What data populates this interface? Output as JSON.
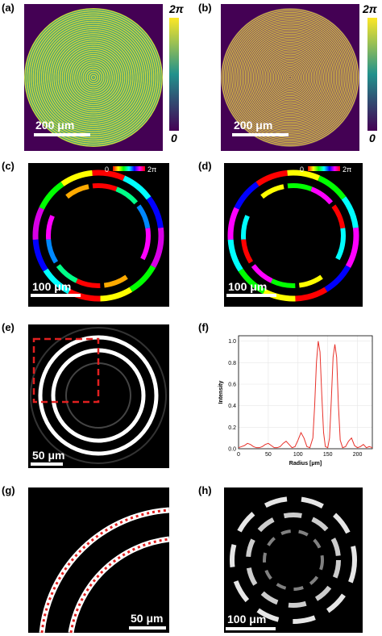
{
  "panels": [
    {
      "label": "(a)",
      "scale_bar": "200 μm",
      "colorbar": {
        "top": "2π",
        "bottom": "0"
      }
    },
    {
      "label": "(b)",
      "scale_bar": "200 μm",
      "colorbar": {
        "top": "2π",
        "bottom": "0"
      }
    },
    {
      "label": "(c)",
      "scale_bar": "100 μm",
      "colorbar": {
        "left": "0",
        "right": "2π"
      }
    },
    {
      "label": "(d)",
      "scale_bar": "100 μm",
      "colorbar": {
        "left": "0",
        "right": "2π"
      }
    },
    {
      "label": "(e)",
      "scale_bar": "50 μm"
    },
    {
      "label": "(f)"
    },
    {
      "label": "(g)",
      "scale_bar": "50 μm"
    },
    {
      "label": "(h)",
      "scale_bar": "100 μm"
    }
  ],
  "chart_data": {
    "type": "line",
    "x_label": "Radius [μm]",
    "y_label": "Intensity",
    "x": [
      0,
      5,
      10,
      15,
      20,
      25,
      30,
      35,
      40,
      45,
      50,
      55,
      60,
      65,
      70,
      75,
      80,
      85,
      90,
      95,
      100,
      105,
      110,
      115,
      120,
      125,
      128,
      131,
      134,
      137,
      140,
      143,
      146,
      150,
      153,
      156,
      159,
      162,
      165,
      168,
      171,
      175,
      180,
      185,
      190,
      195,
      200,
      205,
      210,
      215,
      220,
      225
    ],
    "series": [
      {
        "color": "#e8312a",
        "values": [
          0.01,
          0.02,
          0.03,
          0.05,
          0.04,
          0.02,
          0.01,
          0.01,
          0.02,
          0.04,
          0.05,
          0.03,
          0.01,
          0.01,
          0.02,
          0.05,
          0.07,
          0.04,
          0.01,
          0.02,
          0.08,
          0.15,
          0.1,
          0.02,
          0.01,
          0.1,
          0.4,
          0.8,
          1.0,
          0.9,
          0.5,
          0.15,
          0.02,
          0.01,
          0.1,
          0.45,
          0.85,
          0.97,
          0.85,
          0.4,
          0.08,
          0.01,
          0.02,
          0.07,
          0.1,
          0.03,
          0.01,
          0.02,
          0.04,
          0.01,
          0.02,
          0.01
        ]
      }
    ],
    "xlim": [
      0,
      225
    ],
    "xticks": [
      0,
      50,
      100,
      150,
      200
    ],
    "ylim": [
      0,
      1.05
    ],
    "yticks": [
      {
        "value": 0,
        "label": "0.0"
      },
      0.2,
      0.4,
      0.6,
      0.8,
      {
        "value": 1,
        "label": "1.0"
      }
    ],
    "grid": true
  }
}
